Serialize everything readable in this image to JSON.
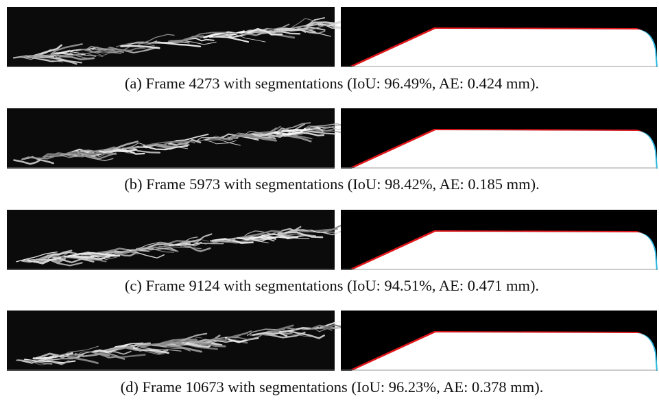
{
  "figures": [
    {
      "caption": "(a) Frame 4273 with segmentations (IoU: 96.49%, AE: 0.424 mm)."
    },
    {
      "caption": "(b) Frame 5973 with segmentations (IoU: 98.42%, AE: 0.185 mm)."
    },
    {
      "caption": "(c) Frame 9124 with segmentations (IoU: 94.51%, AE: 0.471 mm)."
    },
    {
      "caption": "(d) Frame 10673 with segmentations (IoU: 96.23%, AE: 0.378 mm)."
    }
  ]
}
